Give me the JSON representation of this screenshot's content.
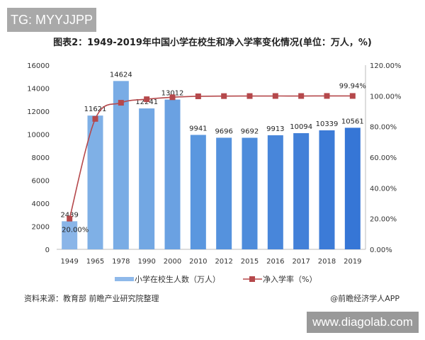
{
  "watermark_top": "TG: MYYJJPP",
  "watermark_bottom": "www.diagolab.com",
  "source": "资料来源：教育部 前瞻产业研究院整理",
  "credit": "@前瞻经济学人APP",
  "chart_data": {
    "type": "bar",
    "title": "图表2：1949-2019年中国小学在校生和净入学率变化情况(单位：万人，%)",
    "categories": [
      "1949",
      "1965",
      "1978",
      "1990",
      "2000",
      "2010",
      "2012",
      "2015",
      "2016",
      "2017",
      "2018",
      "2019"
    ],
    "series": [
      {
        "name": "小学在校生人数（万人）",
        "type": "bar",
        "axis": "left",
        "color": "#5b9bd5",
        "values": [
          2439,
          11621,
          14624,
          12241,
          13012,
          9941,
          9696,
          9692,
          9913,
          10094,
          10339,
          10561
        ],
        "labels": [
          "2439",
          "11621",
          "14624",
          "12241",
          "13012",
          "9941",
          "9696",
          "9692",
          "9913",
          "10094",
          "10339",
          "10561"
        ]
      },
      {
        "name": "净入学率（%）",
        "type": "line",
        "axis": "right",
        "color": "#b5484b",
        "values": [
          20.0,
          85.0,
          95.5,
          97.8,
          99.1,
          99.7,
          99.85,
          99.88,
          99.92,
          99.91,
          99.95,
          99.94
        ],
        "labels": {
          "0": "20.00%",
          "11": "99.94%"
        }
      }
    ],
    "y_left": {
      "min": 0,
      "max": 16000,
      "ticks": [
        "0",
        "2000",
        "4000",
        "6000",
        "8000",
        "10000",
        "12000",
        "14000",
        "16000"
      ]
    },
    "y_right": {
      "min": 0,
      "max": 120,
      "ticks": [
        "0.00%",
        "20.00%",
        "40.00%",
        "60.00%",
        "80.00%",
        "100.00%",
        "120.00%"
      ]
    },
    "grid": false,
    "legend": "bottom"
  }
}
